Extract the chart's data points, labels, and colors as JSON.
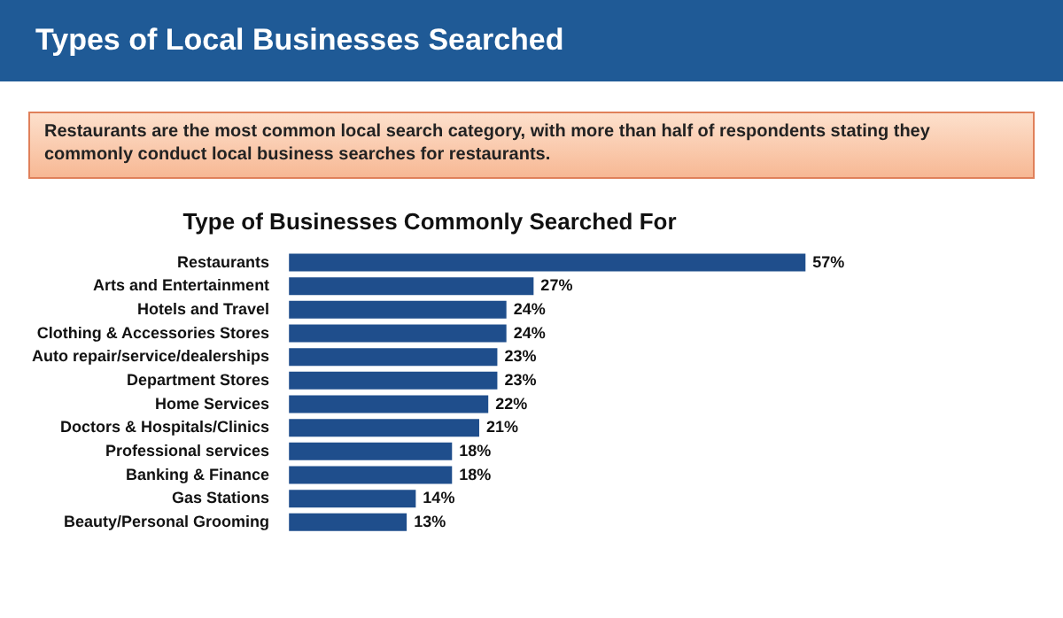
{
  "chart_data": {
    "type": "bar",
    "orientation": "horizontal",
    "title": "Type of Businesses Commonly Searched For",
    "annotations": [
      "Types of Local Businesses Searched",
      "Restaurants are the most common local search category, with more than half of respondents stating they commonly conduct local business searches for restaurants."
    ],
    "categories": [
      "Restaurants",
      "Arts and Entertainment",
      "Hotels and Travel",
      "Clothing & Accessories Stores",
      "Auto repair/service/dealerships",
      "Department Stores",
      "Home Services",
      "Doctors & Hospitals/Clinics",
      "Professional services",
      "Banking & Finance",
      "Gas Stations",
      "Beauty/Personal Grooming"
    ],
    "values": [
      57,
      27,
      24,
      24,
      23,
      23,
      22,
      21,
      18,
      18,
      14,
      13
    ],
    "value_labels": [
      "57%",
      "27%",
      "24%",
      "24%",
      "23%",
      "23%",
      "22%",
      "21%",
      "18%",
      "18%",
      "14%",
      "13%"
    ],
    "color": "#1f4e8c",
    "legend": false
  }
}
